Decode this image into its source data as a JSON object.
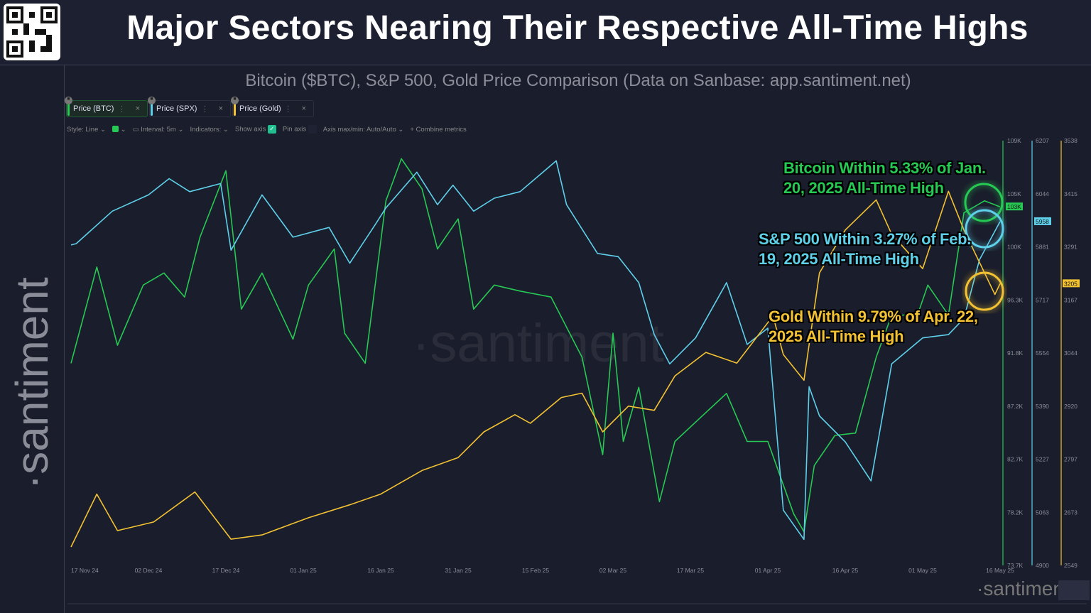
{
  "header": {
    "title": "Major Sectors Nearing Their Respective All-Time Highs",
    "subtitle": "Bitcoin ($BTC), S&P 500, Gold Price Comparison (Data on Sanbase: app.santiment.net)",
    "brand": "santiment"
  },
  "tabs": [
    {
      "label": "Price (BTC)",
      "color": "#26c953"
    },
    {
      "label": "Price (SPX)",
      "color": "#5fd0ea"
    },
    {
      "label": "Price (Gold)",
      "color": "#f3c233"
    }
  ],
  "toolbar": {
    "style": "Style: Line",
    "interval": "Interval: 5m",
    "indicators": "Indicators:",
    "show_axis": "Show axis",
    "pin_axis": "Pin axis",
    "axis_maxmin": "Axis max/min: Auto/Auto",
    "combine": "Combine metrics"
  },
  "annotations": {
    "btc": "Bitcoin Within 5.33% of Jan. 20, 2025 All-Time High",
    "spx": "S&P 500 Within 3.27% of Feb. 19, 2025 All-Time High",
    "gold": "Gold Within 9.79% of Apr. 22, 2025 All-Time High"
  },
  "chart_data": {
    "type": "line",
    "x_ticks": [
      "17 Nov 24",
      "02 Dec 24",
      "17 Dec 24",
      "01 Jan 25",
      "16 Jan 25",
      "31 Jan 25",
      "15 Feb 25",
      "02 Mar 25",
      "17 Mar 25",
      "01 Apr 25",
      "16 Apr 25",
      "01 May 25",
      "16 May 25"
    ],
    "grid": false,
    "series": [
      {
        "name": "Price (BTC)",
        "color": "#26c953",
        "ylim": [
          73.7,
          109
        ],
        "unit": "K",
        "ticks": [
          "109K",
          "105K",
          "100K",
          "96.3K",
          "91.8K",
          "87.2K",
          "82.7K",
          "78.2K",
          "73.7K"
        ],
        "last_label": "103K",
        "points": [
          [
            "2024-11-17",
            90.5
          ],
          [
            "2024-11-22",
            98.5
          ],
          [
            "2024-11-26",
            92
          ],
          [
            "2024-12-01",
            97
          ],
          [
            "2024-12-05",
            98
          ],
          [
            "2024-12-09",
            96
          ],
          [
            "2024-12-12",
            101
          ],
          [
            "2024-12-17",
            106.5
          ],
          [
            "2024-12-20",
            95
          ],
          [
            "2024-12-24",
            98
          ],
          [
            "2024-12-30",
            92.5
          ],
          [
            "2025-01-02",
            97
          ],
          [
            "2025-01-07",
            100
          ],
          [
            "2025-01-09",
            93
          ],
          [
            "2025-01-13",
            90.5
          ],
          [
            "2025-01-17",
            104
          ],
          [
            "2025-01-20",
            107.5
          ],
          [
            "2025-01-24",
            105
          ],
          [
            "2025-01-27",
            100
          ],
          [
            "2025-01-31",
            102.5
          ],
          [
            "2025-02-03",
            95
          ],
          [
            "2025-02-07",
            97
          ],
          [
            "2025-02-12",
            96.5
          ],
          [
            "2025-02-18",
            96
          ],
          [
            "2025-02-24",
            91
          ],
          [
            "2025-02-28",
            82.9
          ],
          [
            "2025-03-02",
            93
          ],
          [
            "2025-03-04",
            84
          ],
          [
            "2025-03-07",
            88.5
          ],
          [
            "2025-03-11",
            79
          ],
          [
            "2025-03-14",
            84
          ],
          [
            "2025-03-19",
            86
          ],
          [
            "2025-03-24",
            88
          ],
          [
            "2025-03-28",
            84
          ],
          [
            "2025-04-01",
            84
          ],
          [
            "2025-04-06",
            78
          ],
          [
            "2025-04-08",
            76.5
          ],
          [
            "2025-04-10",
            82
          ],
          [
            "2025-04-14",
            84.5
          ],
          [
            "2025-04-18",
            84.7
          ],
          [
            "2025-04-22",
            91
          ],
          [
            "2025-04-25",
            94.5
          ],
          [
            "2025-04-30",
            94.5
          ],
          [
            "2025-05-02",
            97
          ],
          [
            "2025-05-06",
            94.5
          ],
          [
            "2025-05-09",
            103
          ],
          [
            "2025-05-13",
            104
          ],
          [
            "2025-05-16",
            103.5
          ]
        ]
      },
      {
        "name": "Price (SPX)",
        "color": "#5fd0ea",
        "ylim": [
          4900,
          6207
        ],
        "ticks": [
          "6207",
          "6044",
          "5881",
          "5717",
          "5554",
          "5390",
          "5227",
          "5063",
          "4900"
        ],
        "last_label": "5958",
        "points": [
          [
            "2024-11-17",
            5886
          ],
          [
            "2024-11-18",
            5890
          ],
          [
            "2024-11-25",
            5990
          ],
          [
            "2024-12-02",
            6040
          ],
          [
            "2024-12-06",
            6090
          ],
          [
            "2024-12-10",
            6050
          ],
          [
            "2024-12-16",
            6075
          ],
          [
            "2024-12-18",
            5870
          ],
          [
            "2024-12-24",
            6040
          ],
          [
            "2024-12-30",
            5910
          ],
          [
            "2025-01-06",
            5940
          ],
          [
            "2025-01-10",
            5830
          ],
          [
            "2025-01-15",
            5950
          ],
          [
            "2025-01-17",
            6000
          ],
          [
            "2025-01-23",
            6110
          ],
          [
            "2025-01-27",
            6010
          ],
          [
            "2025-01-30",
            6070
          ],
          [
            "2025-02-03",
            5990
          ],
          [
            "2025-02-07",
            6030
          ],
          [
            "2025-02-12",
            6050
          ],
          [
            "2025-02-19",
            6145
          ],
          [
            "2025-02-21",
            6010
          ],
          [
            "2025-02-27",
            5860
          ],
          [
            "2025-03-03",
            5850
          ],
          [
            "2025-03-07",
            5770
          ],
          [
            "2025-03-10",
            5610
          ],
          [
            "2025-03-13",
            5520
          ],
          [
            "2025-03-18",
            5600
          ],
          [
            "2025-03-24",
            5770
          ],
          [
            "2025-03-28",
            5580
          ],
          [
            "2025-04-01",
            5630
          ],
          [
            "2025-04-04",
            5070
          ],
          [
            "2025-04-08",
            4980
          ],
          [
            "2025-04-09",
            5450
          ],
          [
            "2025-04-11",
            5360
          ],
          [
            "2025-04-16",
            5280
          ],
          [
            "2025-04-21",
            5160
          ],
          [
            "2025-04-25",
            5520
          ],
          [
            "2025-05-01",
            5600
          ],
          [
            "2025-05-06",
            5610
          ],
          [
            "2025-05-09",
            5660
          ],
          [
            "2025-05-12",
            5840
          ],
          [
            "2025-05-16",
            5958
          ]
        ]
      },
      {
        "name": "Price (Gold)",
        "color": "#f3c233",
        "ylim": [
          2549,
          3538
        ],
        "ticks": [
          "3538",
          "3415",
          "3291",
          "3167",
          "3044",
          "2920",
          "2797",
          "2673",
          "2549"
        ],
        "last_label": "3205",
        "points": [
          [
            "2024-11-17",
            2592
          ],
          [
            "2024-11-22",
            2715
          ],
          [
            "2024-11-26",
            2630
          ],
          [
            "2024-12-03",
            2650
          ],
          [
            "2024-12-11",
            2720
          ],
          [
            "2024-12-18",
            2610
          ],
          [
            "2024-12-24",
            2620
          ],
          [
            "2025-01-02",
            2660
          ],
          [
            "2025-01-10",
            2690
          ],
          [
            "2025-01-16",
            2715
          ],
          [
            "2025-01-24",
            2770
          ],
          [
            "2025-01-31",
            2800
          ],
          [
            "2025-02-05",
            2860
          ],
          [
            "2025-02-11",
            2900
          ],
          [
            "2025-02-14",
            2880
          ],
          [
            "2025-02-20",
            2940
          ],
          [
            "2025-02-24",
            2950
          ],
          [
            "2025-02-28",
            2860
          ],
          [
            "2025-03-05",
            2920
          ],
          [
            "2025-03-10",
            2910
          ],
          [
            "2025-03-14",
            2990
          ],
          [
            "2025-03-20",
            3045
          ],
          [
            "2025-03-26",
            3020
          ],
          [
            "2025-04-02",
            3130
          ],
          [
            "2025-04-04",
            3040
          ],
          [
            "2025-04-08",
            2980
          ],
          [
            "2025-04-11",
            3230
          ],
          [
            "2025-04-16",
            3330
          ],
          [
            "2025-04-22",
            3400
          ],
          [
            "2025-04-25",
            3320
          ],
          [
            "2025-05-01",
            3240
          ],
          [
            "2025-05-06",
            3420
          ],
          [
            "2025-05-09",
            3330
          ],
          [
            "2025-05-15",
            3180
          ],
          [
            "2025-05-16",
            3205
          ]
        ]
      }
    ]
  }
}
